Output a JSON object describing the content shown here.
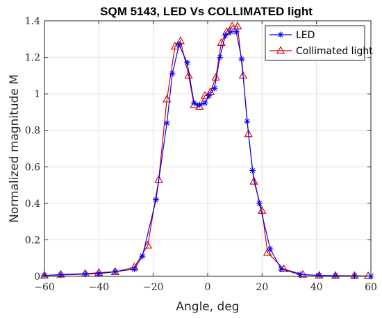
{
  "chart_data": {
    "type": "line",
    "title": "SQM 5143, LED Vs COLLIMATED light",
    "xlabel": "Angle, deg",
    "ylabel": "Normalized magnitude M",
    "xlim": [
      -60,
      60
    ],
    "ylim": [
      0,
      1.4
    ],
    "xticks": [
      -60,
      -40,
      -20,
      0,
      20,
      40,
      60
    ],
    "yticks": [
      0,
      0.2,
      0.4,
      0.6,
      0.8,
      1,
      1.2,
      1.4
    ],
    "xtick_labels": [
      "−60",
      "−40",
      "−20",
      "0",
      "20",
      "40",
      "60"
    ],
    "ytick_labels": [
      "0",
      "0.2",
      "0.4",
      "0.6",
      "0.8",
      "1",
      "1.2",
      "1.4"
    ],
    "grid": true,
    "legend_position": "top-right",
    "series": [
      {
        "name": "LED",
        "color": "#0000ff",
        "marker": "asterisk",
        "x": [
          -60,
          -54,
          -45,
          -40,
          -34,
          -27,
          -24,
          -19,
          -15,
          -13,
          -10.5,
          -7.5,
          -5,
          -3,
          -1,
          0.5,
          2.5,
          4.5,
          6.5,
          8.5,
          10.5,
          12.5,
          14.5,
          16.5,
          19,
          23,
          27,
          34,
          41,
          47,
          54,
          60
        ],
        "y": [
          0.005,
          0.008,
          0.012,
          0.015,
          0.025,
          0.04,
          0.11,
          0.42,
          0.84,
          1.11,
          1.27,
          1.17,
          0.95,
          0.94,
          0.95,
          0.99,
          1.03,
          1.2,
          1.32,
          1.34,
          1.34,
          1.19,
          0.85,
          0.58,
          0.4,
          0.15,
          0.04,
          0.01,
          0.005,
          0.003,
          0.002,
          0.001
        ]
      },
      {
        "name": "Collimated light",
        "color": "#cc0000",
        "marker": "triangle",
        "x": [
          -60,
          -54,
          -45,
          -40,
          -34,
          -27,
          -22,
          -18,
          -15,
          -12,
          -10,
          -7,
          -5,
          -3,
          -1,
          1,
          3,
          5,
          7,
          9,
          11,
          13,
          15,
          17,
          20,
          22,
          28,
          35,
          41,
          47,
          54,
          59
        ],
        "y": [
          0.005,
          0.01,
          0.015,
          0.02,
          0.025,
          0.05,
          0.17,
          0.53,
          0.97,
          1.26,
          1.29,
          1.1,
          0.94,
          0.93,
          0.99,
          1.01,
          1.09,
          1.28,
          1.34,
          1.37,
          1.37,
          1.1,
          0.78,
          0.52,
          0.36,
          0.13,
          0.04,
          0.01,
          0.005,
          0.004,
          0.003,
          0.002
        ]
      }
    ]
  }
}
